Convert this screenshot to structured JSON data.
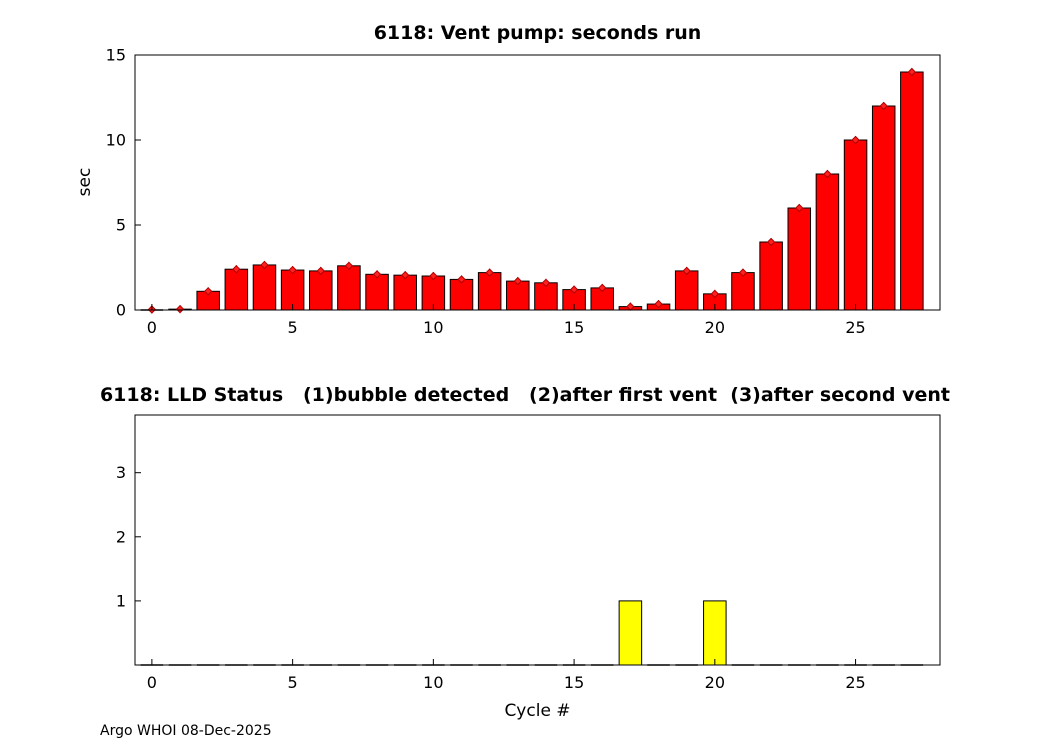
{
  "page": {
    "footer": "Argo WHOI 08-Dec-2025"
  },
  "chart_data": [
    {
      "name": "vent-pump-seconds-run",
      "type": "bar",
      "title": "6118: Vent pump: seconds run",
      "xlabel": "",
      "ylabel": "sec",
      "bar_color": "#ff0000",
      "bar_edge_color": "#000000",
      "marker_color": "#ff2020",
      "marker_edge_color": "#b00000",
      "bar_width": 0.8,
      "error_markers": true,
      "marker": "red-diamond",
      "grid": false,
      "x": [
        0,
        1,
        2,
        3,
        4,
        5,
        6,
        7,
        8,
        9,
        10,
        11,
        12,
        13,
        14,
        15,
        16,
        17,
        18,
        19,
        20,
        21,
        22,
        23,
        24,
        25,
        26,
        27
      ],
      "values": [
        0.03,
        0.05,
        1.1,
        2.4,
        2.65,
        2.35,
        2.3,
        2.6,
        2.1,
        2.05,
        2.0,
        1.8,
        2.2,
        1.7,
        1.6,
        1.2,
        1.3,
        0.2,
        0.35,
        2.3,
        0.95,
        2.2,
        4.0,
        6.0,
        8.0,
        10.0,
        12.0,
        14.0
      ],
      "xlim": [
        -0.6,
        28
      ],
      "ylim": [
        0,
        15
      ],
      "xticks": [
        0,
        5,
        10,
        15,
        20,
        25
      ],
      "yticks": [
        0,
        5,
        10,
        15
      ]
    },
    {
      "name": "lld-status",
      "type": "bar",
      "title": "6118: LLD Status   (1)bubble detected   (2)after first vent  (3)after second vent",
      "xlabel": "Cycle #",
      "ylabel": "",
      "bar_color": "#ffff00",
      "bar_edge_color": "#000000",
      "bar_width": 0.8,
      "error_markers": false,
      "grid": false,
      "x": [
        0,
        1,
        2,
        3,
        4,
        5,
        6,
        7,
        8,
        9,
        10,
        11,
        12,
        13,
        14,
        15,
        16,
        17,
        18,
        19,
        20,
        21,
        22,
        23,
        24,
        25,
        26,
        27
      ],
      "values": [
        0,
        0,
        0,
        0,
        0,
        0,
        0,
        0,
        0,
        0,
        0,
        0,
        0,
        0,
        0,
        0,
        0,
        1,
        0,
        0,
        1,
        0,
        0,
        0,
        0,
        0,
        0,
        0
      ],
      "xlim": [
        -0.6,
        28
      ],
      "ylim": [
        0,
        3.9
      ],
      "xticks": [
        0,
        5,
        10,
        15,
        20,
        25
      ],
      "yticks": [
        1,
        2,
        3
      ]
    }
  ]
}
